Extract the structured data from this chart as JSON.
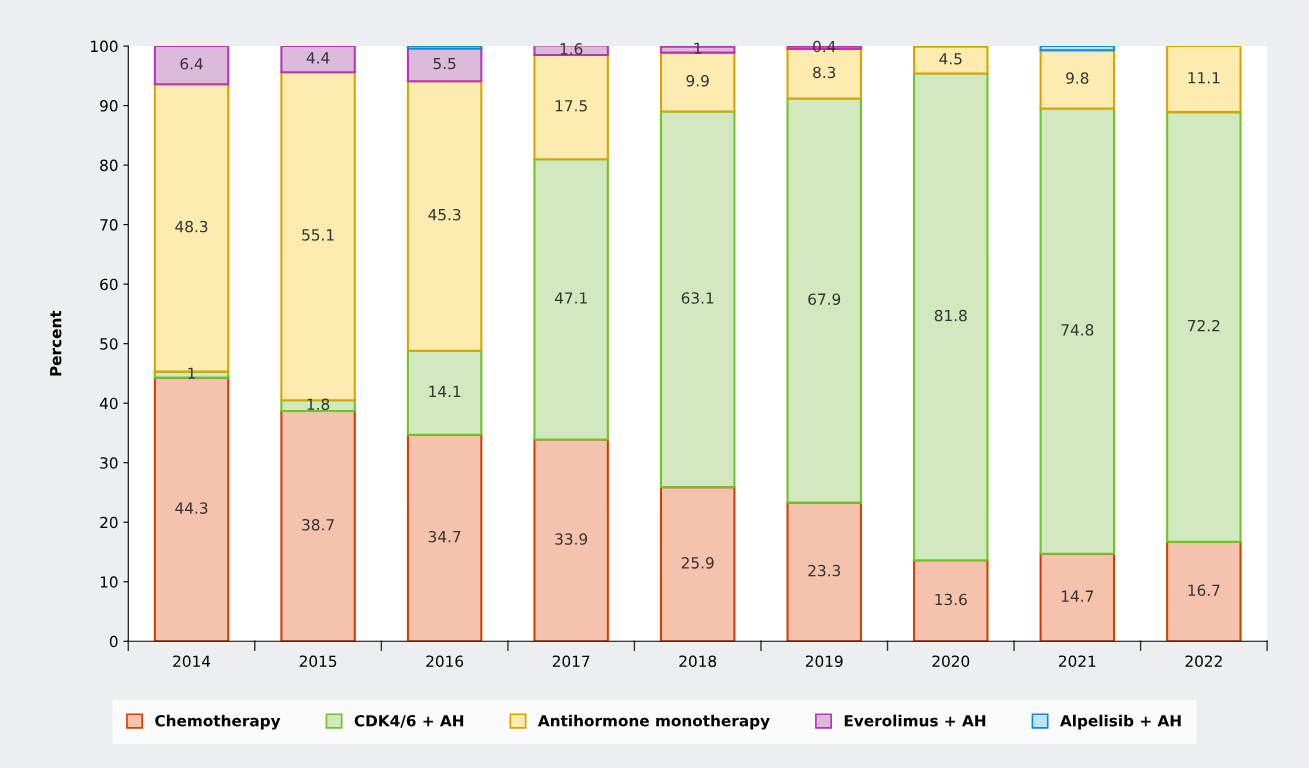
{
  "chart_data": {
    "type": "bar",
    "stacked": true,
    "ylabel": "Percent",
    "categories": [
      "2014",
      "2015",
      "2016",
      "2017",
      "2018",
      "2019",
      "2020",
      "2021",
      "2022"
    ],
    "series": [
      {
        "name": "Chemotherapy",
        "color": "#f5c3ad",
        "values": [
          44.3,
          38.7,
          34.7,
          33.9,
          25.9,
          23.3,
          13.6,
          14.7,
          16.7
        ],
        "value_labels": [
          "44.3",
          "38.7",
          "34.7",
          "33.9",
          "25.9",
          "23.3",
          "13.6",
          "14.7",
          "16.7"
        ]
      },
      {
        "name": "CDK4/6 + AH",
        "color": "#d2e8bf",
        "values": [
          1,
          1.8,
          14.1,
          47.1,
          63.1,
          67.9,
          81.8,
          74.8,
          72.2
        ],
        "value_labels": [
          "1",
          "1.8",
          "14.1",
          "47.1",
          "63.1",
          "67.9",
          "81.8",
          "74.8",
          "72.2"
        ]
      },
      {
        "name": "Antihormone monotherapy",
        "color": "#fdebb0",
        "values": [
          48.3,
          55.1,
          45.3,
          17.5,
          9.9,
          8.3,
          4.5,
          9.8,
          11.1
        ],
        "value_labels": [
          "48.3",
          "55.1",
          "45.3",
          "17.5",
          "9.9",
          "8.3",
          "4.5",
          "9.8",
          "11.1"
        ]
      },
      {
        "name": "Everolimus + AH",
        "color": "#dbbadb",
        "values": [
          6.4,
          4.4,
          5.5,
          1.6,
          1,
          0.4,
          null,
          null,
          null
        ],
        "value_labels": [
          "6.4",
          "4.4",
          "5.5",
          "1.6",
          "1",
          "0.4",
          null,
          null,
          null
        ]
      },
      {
        "name": "Alpelisib + AH",
        "color": "#bfe3f4",
        "values": [
          null,
          null,
          0.4,
          null,
          null,
          null,
          null,
          0.7,
          null
        ],
        "value_labels": [
          null,
          null,
          null,
          null,
          null,
          null,
          null,
          null,
          null
        ]
      }
    ],
    "ylim": [
      0,
      100
    ],
    "yticks": [
      0,
      10,
      20,
      30,
      40,
      50,
      60,
      70,
      80,
      90,
      100
    ],
    "grid": false,
    "legend": "bottom"
  }
}
